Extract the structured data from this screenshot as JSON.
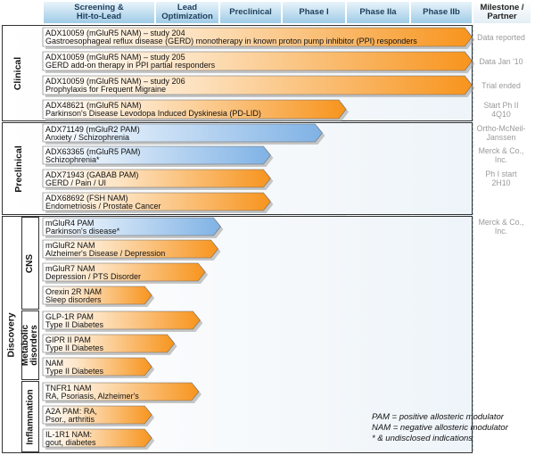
{
  "chart_data": {
    "type": "bar",
    "title": "",
    "phases": [
      "Screening & Hit-to-Lead",
      "Lead Optimization",
      "Preclinical",
      "Phase I",
      "Phase IIa",
      "Phase IIb"
    ],
    "milestone_header": "Milestone / Partner",
    "units": "pipeline stage reached, measured in phase columns (0 = start of Screening & Hit-to-Lead, 6 = end of Phase IIb)",
    "groups": [
      {
        "name": "Clinical",
        "subgroups": []
      },
      {
        "name": "Preclinical",
        "subgroups": []
      },
      {
        "name": "Discovery",
        "subgroups": [
          "CNS",
          "Metabolic disorders",
          "Inflammation"
        ]
      }
    ],
    "series": [
      {
        "name": "Programs"
      }
    ],
    "programs": [
      {
        "compound": "ADX10059 (mGluR5 NAM) – study 204",
        "indication": "Gastroesophageal reflux disease (GERD) monotherapy in known proton pump inhibitor (PPI) responders",
        "group": "Clinical",
        "value": 5.99,
        "color": "orange",
        "milestone": "Data reported"
      },
      {
        "compound": "ADX10059 (mGluR5 NAM) – study 205",
        "indication": "GERD add-on therapy in PPI partial responders",
        "group": "Clinical",
        "value": 5.99,
        "color": "orange",
        "milestone": "Data Jan '10"
      },
      {
        "compound": "ADX10059 (mGluR5 NAM) – study 206",
        "indication": "Prophylaxis for Frequent Migraine",
        "group": "Clinical",
        "value": 5.99,
        "color": "orange",
        "milestone": "Trial ended"
      },
      {
        "compound": "ADX48621 (mGluR5 NAM)",
        "indication": "Parkinson's Disease Levodopa Induced Dyskinesia (PD-LID)",
        "group": "Clinical",
        "value": 4.0,
        "color": "orange",
        "milestone": "Start Ph II\n4Q10"
      },
      {
        "compound": "ADX71149 (mGluR2 PAM)",
        "indication": "Anxiety / Schizophrenia",
        "group": "Preclinical",
        "value": 3.63,
        "color": "blue",
        "milestone": "Ortho-McNeil-\nJanssen"
      },
      {
        "compound": "ADX63365 (mGluR5 PAM)",
        "indication": "Schizophrenia*",
        "group": "Preclinical",
        "value": 2.82,
        "color": "blue",
        "milestone": "Merck & Co.,\nInc."
      },
      {
        "compound": "ADX71943 (GABAB PAM)",
        "indication": "GERD / Pain / UI",
        "group": "Preclinical",
        "value": 2.82,
        "color": "orange",
        "milestone": "Ph I start\n2H10"
      },
      {
        "compound": "ADX68692 (FSH NAM)",
        "indication": "Endometriosis / Prostate Cancer",
        "group": "Preclinical",
        "value": 2.82,
        "color": "orange",
        "milestone": ""
      },
      {
        "compound": "mGluR4 PAM",
        "indication": "Parkinson's disease*",
        "group": "Discovery",
        "subgroup": "CNS",
        "value": 2.02,
        "color": "blue",
        "milestone": "Merck & Co.,\nInc."
      },
      {
        "compound": "mGluR2 NAM",
        "indication": "Alzheimer's Disease / Depression",
        "group": "Discovery",
        "subgroup": "CNS",
        "value": 1.98,
        "color": "orange",
        "milestone": ""
      },
      {
        "compound": "mGluR7 NAM",
        "indication": "Depression / PTS Disorder",
        "group": "Discovery",
        "subgroup": "CNS",
        "value": 1.78,
        "color": "orange",
        "milestone": ""
      },
      {
        "compound": "Orexin 2R NAM",
        "indication": "Sleep disorders",
        "group": "Discovery",
        "subgroup": "CNS",
        "value": 0.97,
        "color": "orange",
        "milestone": ""
      },
      {
        "compound": "GLP-1R PAM",
        "indication": "Type II Diabetes",
        "group": "Discovery",
        "subgroup": "Metabolic disorders",
        "value": 1.7,
        "color": "orange",
        "milestone": ""
      },
      {
        "compound": "GIPR II PAM",
        "indication": "Type II Diabetes",
        "group": "Discovery",
        "subgroup": "Metabolic disorders",
        "value": 1.3,
        "color": "orange",
        "milestone": ""
      },
      {
        "compound": "NAM",
        "indication": "Type II Diabetes",
        "group": "Discovery",
        "subgroup": "Metabolic disorders",
        "value": 0.97,
        "color": "orange",
        "milestone": ""
      },
      {
        "compound": "TNFR1 NAM",
        "indication": "RA, Psoriasis, Alzheimer's",
        "group": "Discovery",
        "subgroup": "Inflammation",
        "value": 1.68,
        "color": "orange",
        "milestone": ""
      },
      {
        "compound": "A2A PAM: RA,",
        "indication": "Psor., arthritis",
        "group": "Discovery",
        "subgroup": "Inflammation",
        "value": 0.97,
        "color": "orange",
        "milestone": ""
      },
      {
        "compound": "IL-1R1 NAM:",
        "indication": "gout, diabetes",
        "group": "Discovery",
        "subgroup": "Inflammation",
        "value": 0.97,
        "color": "orange",
        "milestone": ""
      }
    ],
    "legend": [
      "PAM = positive allosteric modulator",
      "NAM = negative allosteric modulator",
      "* & undisclosed indications"
    ],
    "colors": {
      "orange_start": "#ffffff",
      "orange_end": "#f7941d",
      "blue_start": "#ffffff",
      "blue_end": "#7fb2e5",
      "header_top": "#e9f4fb",
      "header_bottom": "#9fcbe6",
      "milestone_text": "#9a9a9a"
    }
  }
}
